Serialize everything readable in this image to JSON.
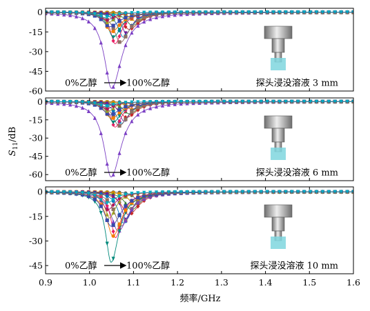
{
  "chart_data": {
    "type": "line",
    "x_axis": {
      "label": "频率/GHz",
      "range": [
        0.9,
        1.6
      ],
      "ticks": [
        "0.9",
        "1.0",
        "1.1",
        "1.2",
        "1.3",
        "1.4",
        "1.5",
        "1.6"
      ]
    },
    "y_axis_label": {
      "main": "S",
      "sub": "11",
      "unit": "/dB"
    },
    "panels": [
      {
        "id": "3mm",
        "y_range": [
          -60,
          3
        ],
        "ticks": [
          "0",
          "-15",
          "-30",
          "-45",
          "-60"
        ],
        "arrow_start": "0%乙醇",
        "arrow_end": "100%乙醇",
        "caption": "探头浸没溶液 3 mm",
        "x_end": 1.6,
        "series_min_db": [
          -4,
          -7,
          -10,
          -13,
          -16,
          -19,
          -23,
          -58,
          -24,
          -19,
          -15,
          -11,
          -8,
          -6,
          -4
        ],
        "series_res_ghz": [
          1.115,
          1.105,
          1.097,
          1.09,
          1.083,
          1.077,
          1.07,
          1.05,
          1.058,
          1.054,
          1.05,
          1.046,
          1.042,
          1.038,
          1.034
        ]
      },
      {
        "id": "6mm",
        "y_range": [
          -65,
          3
        ],
        "ticks": [
          "0",
          "-15",
          "-30",
          "-45",
          "-60"
        ],
        "arrow_start": "0%乙醇",
        "arrow_end": "100%乙醇",
        "caption": "探头浸没溶液 6 mm",
        "x_end": 1.6,
        "series_min_db": [
          -4,
          -7,
          -10,
          -13,
          -16,
          -18,
          -20,
          -62,
          -21,
          -17,
          -14,
          -11,
          -8,
          -6,
          -4
        ],
        "series_res_ghz": [
          1.105,
          1.098,
          1.09,
          1.084,
          1.078,
          1.072,
          1.067,
          1.049,
          1.058,
          1.054,
          1.05,
          1.046,
          1.042,
          1.038,
          1.034
        ]
      },
      {
        "id": "10mm",
        "y_range": [
          -50,
          3
        ],
        "ticks": [
          "0",
          "-15",
          "-30",
          "-45"
        ],
        "arrow_start": "0%乙醇",
        "arrow_end": "100%乙醇",
        "caption": "探头浸没溶液 10 mm",
        "x_end": 1.6,
        "series_min_db": [
          -5,
          -8,
          -11,
          -14,
          -17,
          -19,
          -21,
          -24,
          -28,
          -43,
          -27,
          -21,
          -16,
          -11,
          -7
        ],
        "series_res_ghz": [
          1.11,
          1.102,
          1.095,
          1.089,
          1.083,
          1.077,
          1.071,
          1.065,
          1.059,
          1.049,
          1.053,
          1.049,
          1.045,
          1.041,
          1.037
        ]
      }
    ],
    "series_colors": [
      "#5b5b5b",
      "#d48a00",
      "#2f7d32",
      "#c62828",
      "#6a1b9a",
      "#0277bd",
      "#8d6e63",
      "#7b3fc4",
      "#e91e63",
      "#00897b",
      "#f57c00",
      "#3949ab",
      "#9e9d24",
      "#ad1457",
      "#00acc1"
    ],
    "probe_colors": {
      "metal_light": "#eeeeee",
      "metal_dark": "#6e6e6e",
      "liquid": "#7fd6de"
    }
  }
}
